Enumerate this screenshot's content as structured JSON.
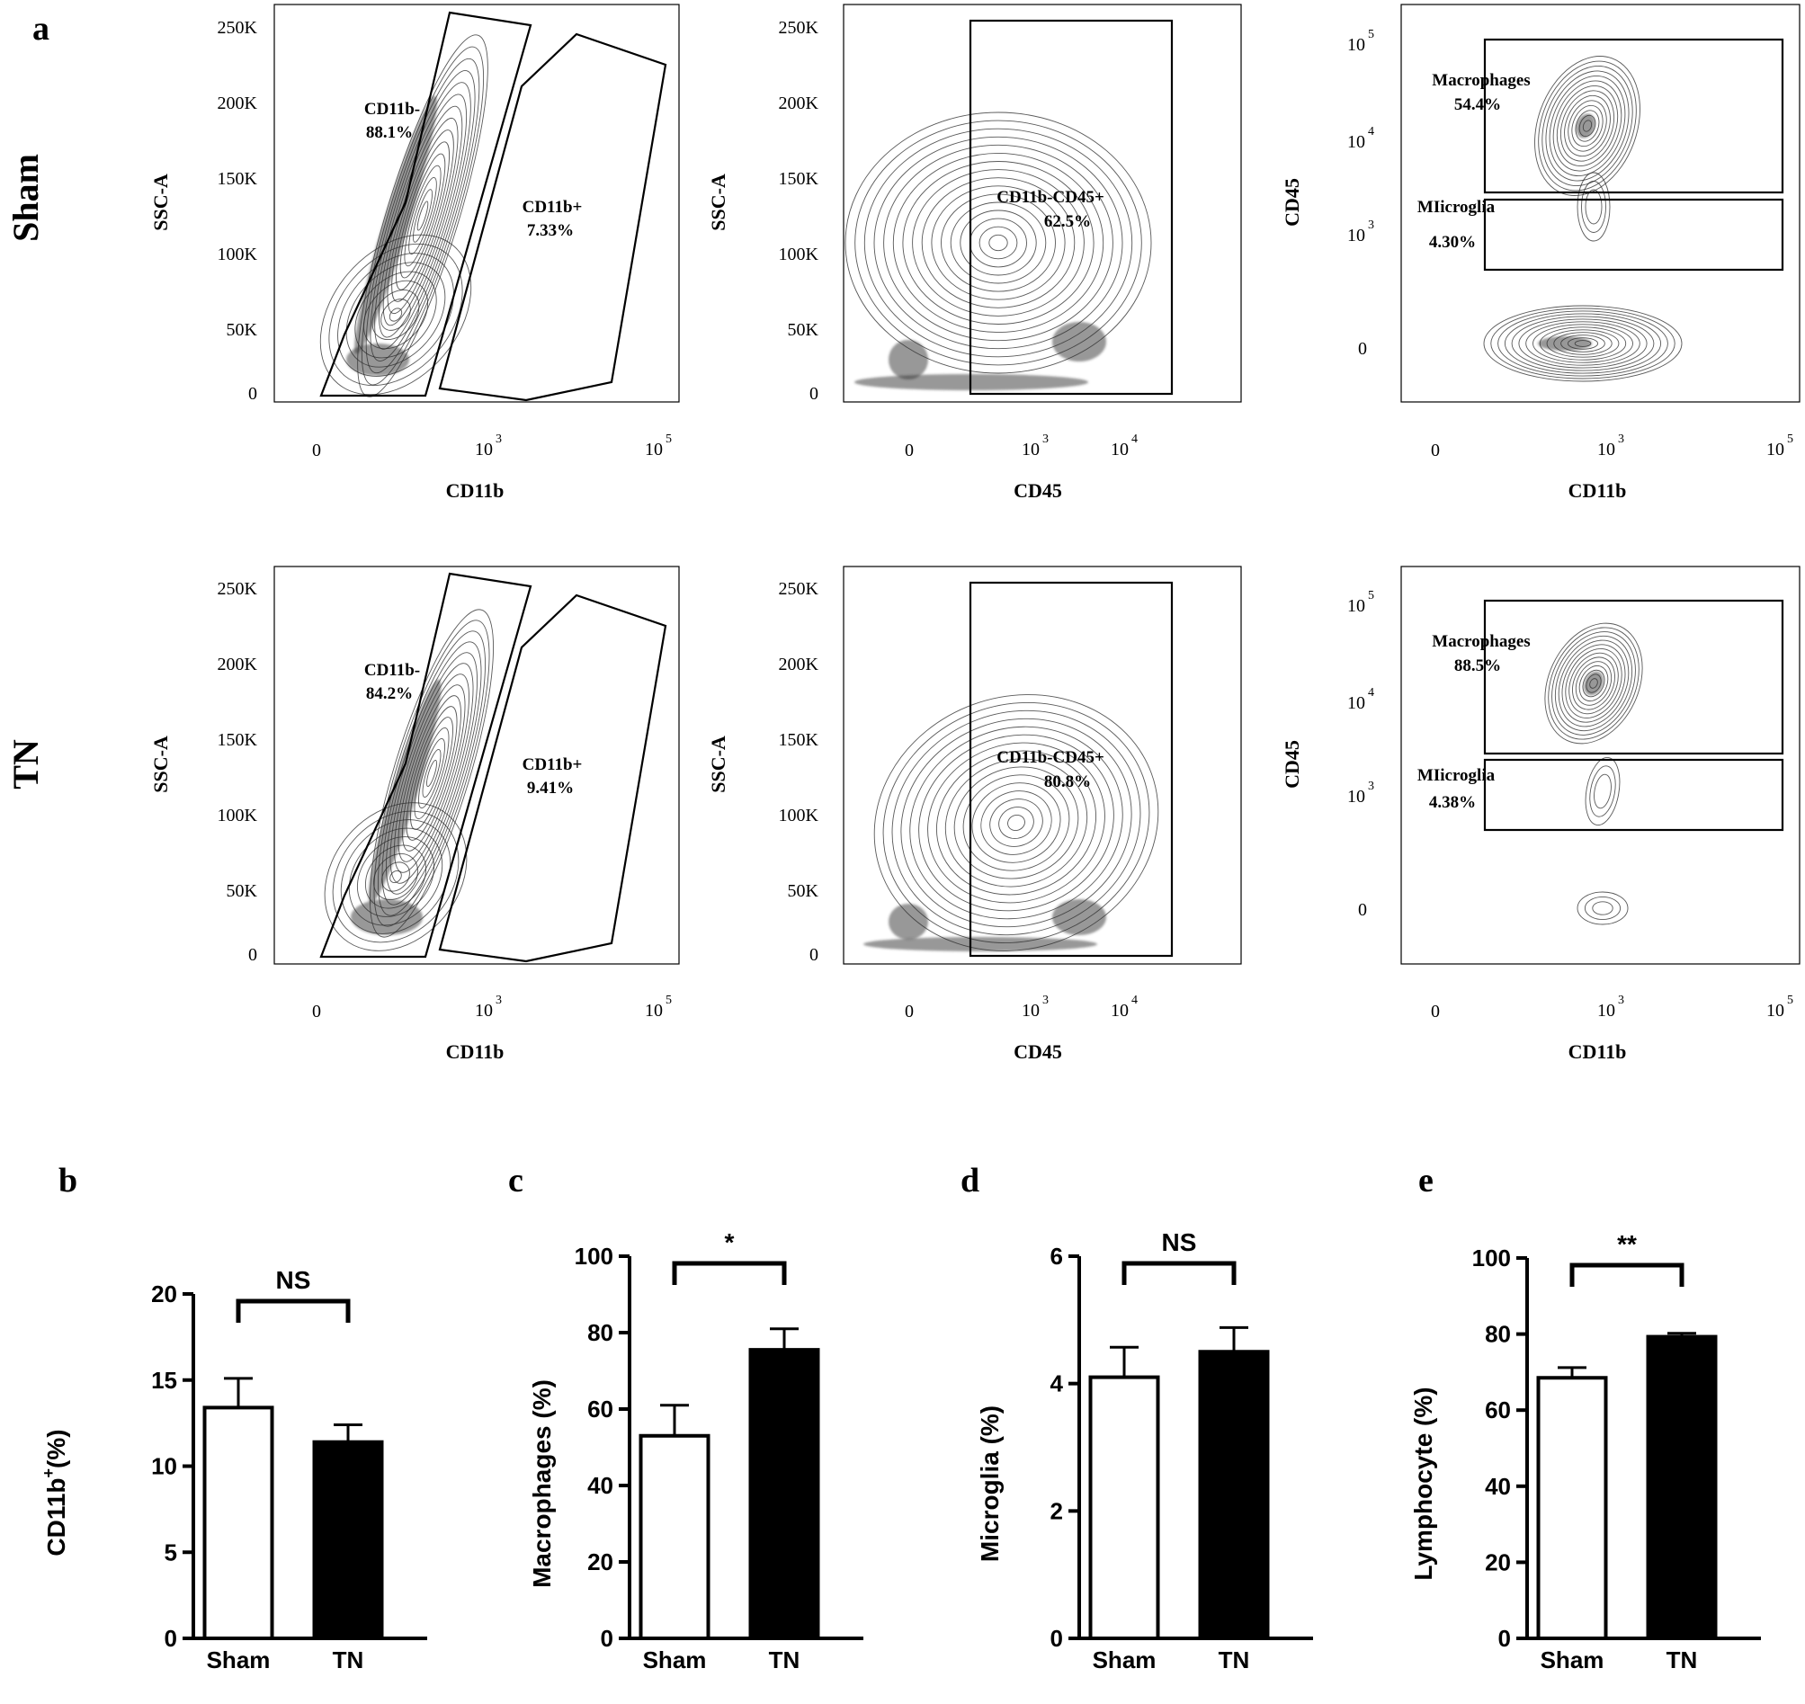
{
  "panel_labels": {
    "a": "a",
    "b": "b",
    "c": "c",
    "d": "d",
    "e": "e"
  },
  "row_labels": [
    "Sham",
    "TN"
  ],
  "flow": {
    "ssc_ticks": [
      "0",
      "50K",
      "100K",
      "150K",
      "200K",
      "250K"
    ],
    "log_tick_base": "10",
    "plot1": {
      "xlabel": "CD11b",
      "ylabel": "SSC-A",
      "x_ticks": [
        {
          "base": "0",
          "exp": ""
        },
        {
          "base": "10",
          "exp": "3"
        },
        {
          "base": "10",
          "exp": "5"
        }
      ]
    },
    "plot2": {
      "xlabel": "CD45",
      "ylabel": "SSC-A",
      "x_ticks": [
        {
          "base": "0",
          "exp": ""
        },
        {
          "base": "10",
          "exp": "3"
        },
        {
          "base": "10",
          "exp": "4"
        }
      ]
    },
    "plot3": {
      "xlabel": "CD11b",
      "ylabel": "CD45",
      "x_ticks": [
        {
          "base": "0",
          "exp": ""
        },
        {
          "base": "10",
          "exp": "3"
        },
        {
          "base": "10",
          "exp": "5"
        }
      ],
      "y_ticks": [
        {
          "base": "0",
          "exp": ""
        },
        {
          "base": "10",
          "exp": "3"
        },
        {
          "base": "10",
          "exp": "4"
        },
        {
          "base": "10",
          "exp": "5"
        }
      ]
    },
    "rows": [
      {
        "name": "Sham",
        "gate_neg": {
          "label": "CD11b-",
          "value": "88.1%"
        },
        "gate_pos": {
          "label": "CD11b+",
          "value": "7.33%"
        },
        "gate_cd45": {
          "label": "CD11b-CD45+",
          "value": "62.5%"
        },
        "gate_macro": {
          "label": "Macrophages",
          "value": "54.4%"
        },
        "gate_micro": {
          "label": "MIicroglia",
          "value": "4.30%"
        }
      },
      {
        "name": "TN",
        "gate_neg": {
          "label": "CD11b-",
          "value": "84.2%"
        },
        "gate_pos": {
          "label": "CD11b+",
          "value": "9.41%"
        },
        "gate_cd45": {
          "label": "CD11b-CD45+",
          "value": "80.8%"
        },
        "gate_macro": {
          "label": "Macrophages",
          "value": "88.5%"
        },
        "gate_micro": {
          "label": "MIicroglia",
          "value": "4.38%"
        }
      }
    ]
  },
  "chart_data": [
    {
      "panel": "b",
      "type": "bar",
      "categories": [
        "Sham",
        "TN"
      ],
      "values": [
        13.4,
        11.4
      ],
      "errors": [
        1.7,
        1.0
      ],
      "bar_fills": [
        "#ffffff",
        "#000000"
      ],
      "ylabel_main": "CD11b",
      "ylabel_sup": "+",
      "ylabel_tail": "(%)",
      "ylim": [
        0,
        20
      ],
      "yticks": [
        0,
        5,
        10,
        15,
        20
      ],
      "significance": "NS"
    },
    {
      "panel": "c",
      "type": "bar",
      "categories": [
        "Sham",
        "TN"
      ],
      "values": [
        53,
        75.5
      ],
      "errors": [
        8,
        5.5
      ],
      "bar_fills": [
        "#ffffff",
        "#000000"
      ],
      "ylabel_main": "Macrophages (%)",
      "ylabel_sup": "",
      "ylabel_tail": "",
      "ylim": [
        0,
        100
      ],
      "yticks": [
        0,
        20,
        40,
        60,
        80,
        100
      ],
      "significance": "*"
    },
    {
      "panel": "d",
      "type": "bar",
      "categories": [
        "Sham",
        "TN"
      ],
      "values": [
        4.1,
        4.5
      ],
      "errors": [
        0.47,
        0.38
      ],
      "bar_fills": [
        "#ffffff",
        "#000000"
      ],
      "ylabel_main": "Microglia (%)",
      "ylabel_sup": "",
      "ylabel_tail": "",
      "ylim": [
        0,
        6
      ],
      "yticks": [
        0,
        2,
        4,
        6
      ],
      "significance": "NS"
    },
    {
      "panel": "e",
      "type": "bar",
      "categories": [
        "Sham",
        "TN"
      ],
      "values": [
        68.5,
        79.3
      ],
      "errors": [
        2.7,
        0.9
      ],
      "bar_fills": [
        "#ffffff",
        "#000000"
      ],
      "ylabel_main": "Lymphocyte (%)",
      "ylabel_sup": "",
      "ylabel_tail": "",
      "ylim": [
        0,
        100
      ],
      "yticks": [
        0,
        20,
        40,
        60,
        80,
        100
      ],
      "significance": "**"
    }
  ]
}
